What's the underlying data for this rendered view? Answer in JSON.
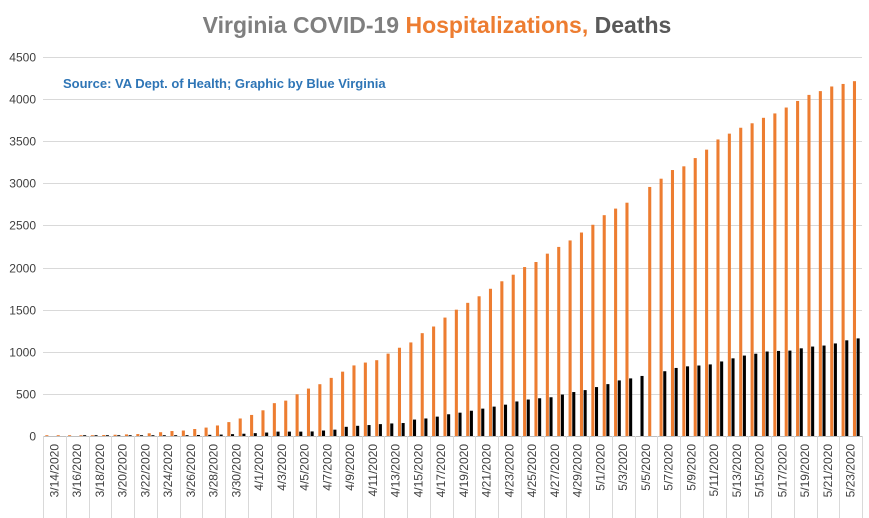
{
  "chart_data": {
    "type": "bar",
    "title_parts": [
      {
        "text": "Virginia COVID-19 ",
        "color": "#7f7f7f"
      },
      {
        "text": "Hospitalizations,",
        "color": "#ed7d31"
      },
      {
        "text": " Deaths",
        "color": "#595959"
      }
    ],
    "subtitle": "Source: VA Dept. of Health; Graphic by Blue Virginia",
    "subtitle_color": "#2e75b6",
    "ylim": [
      0,
      4500
    ],
    "yticks": [
      0,
      500,
      1000,
      1500,
      2000,
      2500,
      3000,
      3500,
      4000,
      4500
    ],
    "grid": true,
    "categories": [
      "3/14/2020",
      "3/15/2020",
      "3/16/2020",
      "3/17/2020",
      "3/18/2020",
      "3/19/2020",
      "3/20/2020",
      "3/21/2020",
      "3/22/2020",
      "3/23/2020",
      "3/24/2020",
      "3/25/2020",
      "3/26/2020",
      "3/27/2020",
      "3/28/2020",
      "3/29/2020",
      "3/30/2020",
      "3/31/2020",
      "4/1/2020",
      "4/2/2020",
      "4/3/2020",
      "4/4/2020",
      "4/5/2020",
      "4/6/2020",
      "4/7/2020",
      "4/8/2020",
      "4/9/2020",
      "4/10/2020",
      "4/11/2020",
      "4/12/2020",
      "4/13/2020",
      "4/14/2020",
      "4/15/2020",
      "4/16/2020",
      "4/17/2020",
      "4/18/2020",
      "4/19/2020",
      "4/20/2020",
      "4/21/2020",
      "4/22/2020",
      "4/23/2020",
      "4/24/2020",
      "4/25/2020",
      "4/26/2020",
      "4/27/2020",
      "4/28/2020",
      "4/29/2020",
      "4/30/2020",
      "5/1/2020",
      "5/2/2020",
      "5/3/2020",
      "5/4/2020",
      "5/5/2020",
      "5/6/2020",
      "5/7/2020",
      "5/8/2020",
      "5/9/2020",
      "5/10/2020",
      "5/11/2020",
      "5/12/2020",
      "5/13/2020",
      "5/14/2020",
      "5/15/2020",
      "5/16/2020",
      "5/17/2020",
      "5/18/2020",
      "5/19/2020",
      "5/20/2020",
      "5/21/2020",
      "5/22/2020",
      "5/23/2020",
      "5/24/2020"
    ],
    "series": [
      {
        "name": "Hospitalizations",
        "color": "#ed7d31",
        "values": [
          1,
          2,
          3,
          5,
          8,
          12,
          15,
          19,
          23,
          32,
          45,
          59,
          65,
          83,
          100,
          125,
          165,
          208,
          250,
          305,
          390,
          420,
          495,
          563,
          615,
          690,
          764,
          838,
          872,
          900,
          978,
          1048,
          1111,
          1221,
          1300,
          1406,
          1500,
          1581,
          1659,
          1748,
          1837,
          1915,
          2006,
          2066,
          2165,
          2245,
          2322,
          2416,
          2508,
          2622,
          2700,
          2770,
          null,
          2957,
          3055,
          3158,
          3202,
          3300,
          3400,
          3521,
          3590,
          3660,
          3713,
          3778,
          3830,
          3900,
          3978,
          4050,
          4095,
          4150,
          4180,
          4213
        ]
      },
      {
        "name": "Deaths",
        "color": "#000000",
        "values": [
          0,
          0,
          0,
          1,
          2,
          2,
          3,
          4,
          5,
          6,
          7,
          9,
          10,
          12,
          14,
          17,
          22,
          27,
          34,
          41,
          52,
          52,
          52,
          54,
          65,
          75,
          109,
          121,
          130,
          141,
          149,
          154,
          195,
          208,
          230,
          258,
          277,
          300,
          325,
          349,
          372,
          410,
          433,
          448,
          460,
          492,
          522,
          545,
          581,
          616,
          660,
          684,
          713,
          null,
          769,
          808,
          827,
          837,
          850,
          885,
          922,
          955,
          977,
          1003,
          1010,
          1014,
          1041,
          1062,
          1074,
          1099,
          1136,
          1159
        ]
      }
    ]
  }
}
